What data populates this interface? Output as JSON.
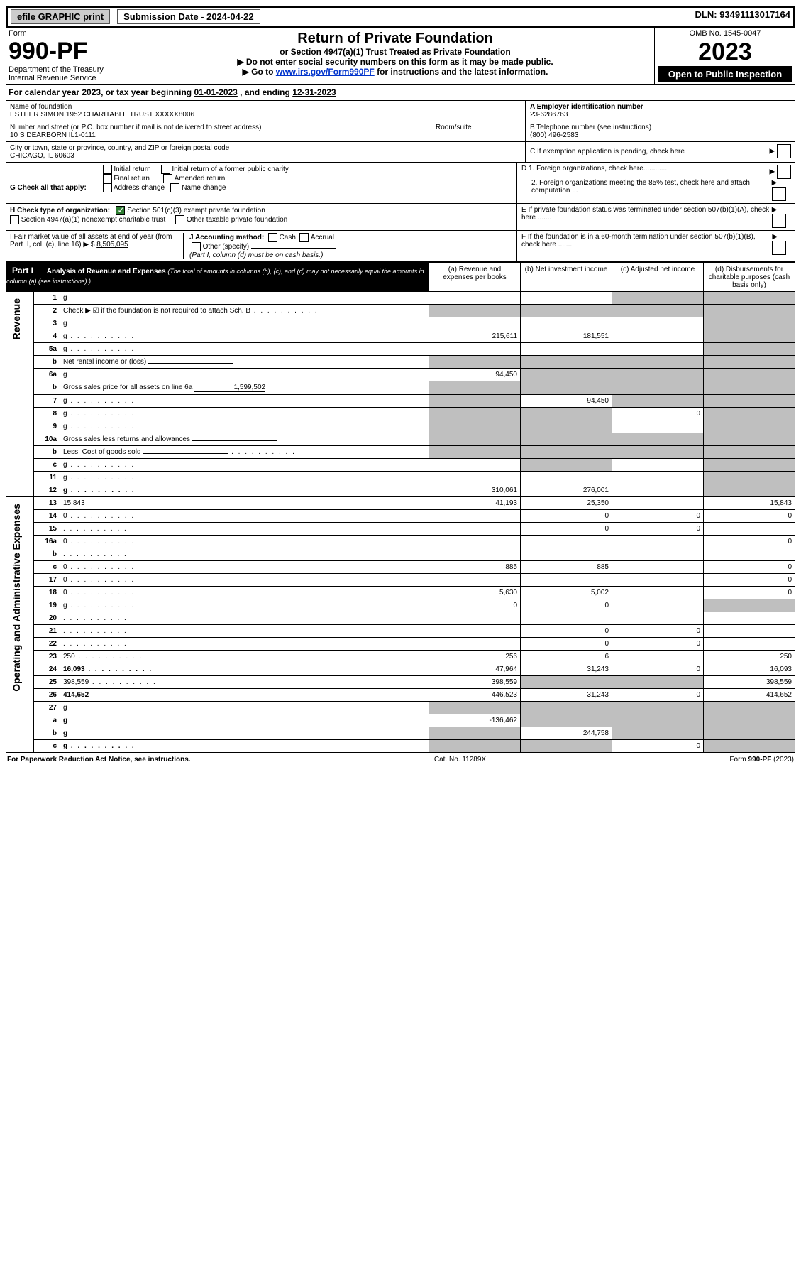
{
  "topbar": {
    "efile": "efile GRAPHIC print",
    "sub_label": "Submission Date - 2024-04-22",
    "dln": "DLN: 93491113017164"
  },
  "header": {
    "form_word": "Form",
    "form_no": "990-PF",
    "dept": "Department of the Treasury",
    "irs": "Internal Revenue Service",
    "title": "Return of Private Foundation",
    "subtitle": "or Section 4947(a)(1) Trust Treated as Private Foundation",
    "note1": "▶ Do not enter social security numbers on this form as it may be made public.",
    "note2_pre": "▶ Go to ",
    "note2_link": "www.irs.gov/Form990PF",
    "note2_post": " for instructions and the latest information.",
    "omb": "OMB No. 1545-0047",
    "year": "2023",
    "open": "Open to Public Inspection"
  },
  "cal": {
    "text_pre": "For calendar year 2023, or tax year beginning ",
    "begin": "01-01-2023",
    "mid": " , and ending ",
    "end": "12-31-2023"
  },
  "info": {
    "name_label": "Name of foundation",
    "name": "ESTHER SIMON 1952 CHARITABLE TRUST XXXXX8006",
    "addr_label": "Number and street (or P.O. box number if mail is not delivered to street address)",
    "addr": "10 S DEARBORN IL1-0111",
    "room_label": "Room/suite",
    "city_label": "City or town, state or province, country, and ZIP or foreign postal code",
    "city": "CHICAGO, IL  60603",
    "a_label": "A Employer identification number",
    "a_val": "23-6286763",
    "b_label": "B Telephone number (see instructions)",
    "b_val": "(800) 496-2583",
    "c_label": "C If exemption application is pending, check here",
    "d1": "D 1. Foreign organizations, check here............",
    "d2": "2. Foreign organizations meeting the 85% test, check here and attach computation ...",
    "e": "E  If private foundation status was terminated under section 507(b)(1)(A), check here .......",
    "f": "F  If the foundation is in a 60-month termination under section 507(b)(1)(B), check here .......",
    "g_label": "G Check all that apply:",
    "g_opts": [
      "Initial return",
      "Initial return of a former public charity",
      "Final return",
      "Amended return",
      "Address change",
      "Name change"
    ],
    "h_label": "H Check type of organization:",
    "h_opt1": "Section 501(c)(3) exempt private foundation",
    "h_opt2": "Section 4947(a)(1) nonexempt charitable trust",
    "h_opt3": "Other taxable private foundation",
    "i_label": "I Fair market value of all assets at end of year (from Part II, col. (c), line 16) ▶ $",
    "i_val": "8,505,095",
    "j_label": "J Accounting method:",
    "j_cash": "Cash",
    "j_accr": "Accrual",
    "j_other": "Other (specify)",
    "j_note": "(Part I, column (d) must be on cash basis.)"
  },
  "part1": {
    "label": "Part I",
    "title": "Analysis of Revenue and Expenses",
    "title_note": "(The total of amounts in columns (b), (c), and (d) may not necessarily equal the amounts in column (a) (see instructions).)",
    "col_a": "(a)  Revenue and expenses per books",
    "col_b": "(b)  Net investment income",
    "col_c": "(c)  Adjusted net income",
    "col_d": "(d)  Disbursements for charitable purposes (cash basis only)",
    "side_rev": "Revenue",
    "side_exp": "Operating and Administrative Expenses"
  },
  "rows": [
    {
      "n": "1",
      "d": "g",
      "a": "",
      "b": "",
      "c": "g"
    },
    {
      "n": "2",
      "d": "Check ▶ ☑ if the foundation is not required to attach Sch. B",
      "dots": true,
      "span": true
    },
    {
      "n": "3",
      "d": "g",
      "a": "",
      "b": "",
      "c": ""
    },
    {
      "n": "4",
      "d": "g",
      "dots": true,
      "a": "215,611",
      "b": "181,551",
      "c": ""
    },
    {
      "n": "5a",
      "d": "g",
      "dots": true,
      "a": "",
      "b": "",
      "c": ""
    },
    {
      "n": "b",
      "d": "Net rental income or (loss)",
      "line": true,
      "span": true
    },
    {
      "n": "6a",
      "d": "g",
      "a": "94,450",
      "b": "g",
      "c": "g"
    },
    {
      "n": "b",
      "d": "Gross sales price for all assets on line 6a",
      "val": "1,599,502",
      "span": true
    },
    {
      "n": "7",
      "d": "g",
      "dots": true,
      "a": "g",
      "b": "94,450",
      "c": "g"
    },
    {
      "n": "8",
      "d": "g",
      "dots": true,
      "a": "g",
      "b": "g",
      "c": "0"
    },
    {
      "n": "9",
      "d": "g",
      "dots": true,
      "a": "g",
      "b": "g",
      "c": ""
    },
    {
      "n": "10a",
      "d": "Gross sales less returns and allowances",
      "line": true,
      "span": true
    },
    {
      "n": "b",
      "d": "Less: Cost of goods sold",
      "dots": true,
      "line": true,
      "span": true
    },
    {
      "n": "c",
      "d": "g",
      "dots": true,
      "a": "",
      "b": "g",
      "c": ""
    },
    {
      "n": "11",
      "d": "g",
      "dots": true,
      "a": "",
      "b": "",
      "c": ""
    },
    {
      "n": "12",
      "d": "g",
      "dots": true,
      "bold": true,
      "a": "310,061",
      "b": "276,001",
      "c": ""
    },
    {
      "n": "13",
      "d": "15,843",
      "a": "41,193",
      "b": "25,350",
      "c": ""
    },
    {
      "n": "14",
      "d": "0",
      "dots": true,
      "a": "",
      "b": "0",
      "c": "0"
    },
    {
      "n": "15",
      "d": "",
      "dots": true,
      "a": "",
      "b": "0",
      "c": "0"
    },
    {
      "n": "16a",
      "d": "0",
      "dots": true,
      "a": "",
      "b": "",
      "c": ""
    },
    {
      "n": "b",
      "d": "",
      "dots": true,
      "a": "",
      "b": "",
      "c": ""
    },
    {
      "n": "c",
      "d": "0",
      "dots": true,
      "a": "885",
      "b": "885",
      "c": ""
    },
    {
      "n": "17",
      "d": "0",
      "dots": true,
      "a": "",
      "b": "",
      "c": ""
    },
    {
      "n": "18",
      "d": "0",
      "dots": true,
      "a": "5,630",
      "b": "5,002",
      "c": ""
    },
    {
      "n": "19",
      "d": "g",
      "dots": true,
      "a": "0",
      "b": "0",
      "c": ""
    },
    {
      "n": "20",
      "d": "",
      "dots": true,
      "a": "",
      "b": "",
      "c": ""
    },
    {
      "n": "21",
      "d": "",
      "dots": true,
      "a": "",
      "b": "0",
      "c": "0"
    },
    {
      "n": "22",
      "d": "",
      "dots": true,
      "a": "",
      "b": "0",
      "c": "0"
    },
    {
      "n": "23",
      "d": "250",
      "dots": true,
      "a": "256",
      "b": "6",
      "c": ""
    },
    {
      "n": "24",
      "d": "16,093",
      "dots": true,
      "bold": true,
      "a": "47,964",
      "b": "31,243",
      "c": "0"
    },
    {
      "n": "25",
      "d": "398,559",
      "dots": true,
      "a": "398,559",
      "b": "g",
      "c": "g"
    },
    {
      "n": "26",
      "d": "414,652",
      "bold": true,
      "a": "446,523",
      "b": "31,243",
      "c": "0"
    },
    {
      "n": "27",
      "d": "g",
      "a": "g",
      "b": "g",
      "c": "g"
    },
    {
      "n": "a",
      "d": "g",
      "bold": true,
      "a": "-136,462",
      "b": "g",
      "c": "g"
    },
    {
      "n": "b",
      "d": "g",
      "bold": true,
      "a": "g",
      "b": "244,758",
      "c": "g"
    },
    {
      "n": "c",
      "d": "g",
      "bold": true,
      "dots": true,
      "a": "g",
      "b": "g",
      "c": "0"
    }
  ],
  "footer": {
    "left": "For Paperwork Reduction Act Notice, see instructions.",
    "mid": "Cat. No. 11289X",
    "right": "Form 990-PF (2023)"
  }
}
